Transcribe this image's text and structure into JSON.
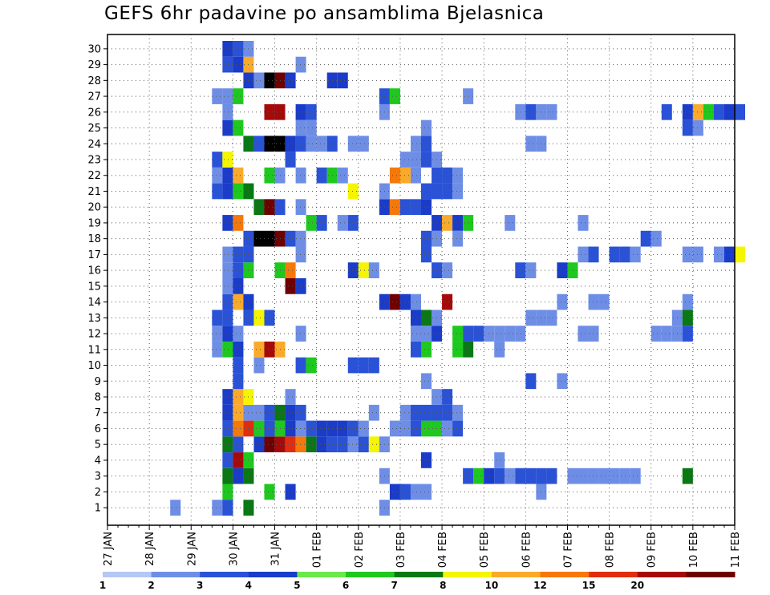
{
  "chart_data": {
    "type": "heatmap",
    "title": "GEFS 6hr padavine po ansamblima Bjelasnica",
    "xlabel": "",
    "ylabel": "",
    "x_tick_labels": [
      "27 JAN",
      "28 JAN",
      "29 JAN",
      "30 JAN",
      "31 JAN",
      "01 FEB",
      "02 FEB",
      "03 FEB",
      "04 FEB",
      "05 FEB",
      "06 FEB",
      "07 FEB",
      "08 FEB",
      "09 FEB",
      "10 FEB",
      "11 FEB"
    ],
    "y_tick_labels": [
      "1",
      "2",
      "3",
      "4",
      "5",
      "6",
      "7",
      "8",
      "9",
      "10",
      "11",
      "12",
      "13",
      "14",
      "15",
      "16",
      "17",
      "18",
      "19",
      "20",
      "21",
      "22",
      "23",
      "24",
      "25",
      "26",
      "27",
      "28",
      "29",
      "30"
    ],
    "x_range_days": [
      0,
      15
    ],
    "y_range_members": [
      0,
      30
    ],
    "time_step_hours": 6,
    "grid": true,
    "colorbar": {
      "placement": "bottom",
      "labels": [
        "1",
        "2",
        "3",
        "4",
        "5",
        "6",
        "7",
        "8",
        "10",
        "12",
        "15",
        "20"
      ],
      "colors": [
        "#b4c8f5",
        "#6e8ee6",
        "#2a52d6",
        "#1a3cc8",
        "#6ae84c",
        "#1ec81e",
        "#0a7814",
        "#f5f500",
        "#faaa2a",
        "#f5780a",
        "#e12d0f",
        "#a50a0a",
        "#6e0000"
      ]
    },
    "cells": [
      [
        2.75,
        0,
        2
      ],
      [
        2.5,
        0,
        1
      ],
      [
        2.75,
        0,
        2
      ],
      [
        3.25,
        0,
        6
      ],
      [
        1.5,
        0,
        1
      ],
      [
        6.5,
        0,
        1
      ],
      [
        2.75,
        1,
        5
      ],
      [
        3.75,
        1,
        5
      ],
      [
        4.25,
        1,
        3
      ],
      [
        6.75,
        1,
        3
      ],
      [
        7,
        1,
        2
      ],
      [
        7.25,
        1,
        1
      ],
      [
        7.5,
        1,
        1
      ],
      [
        10.25,
        1,
        1
      ],
      [
        2.75,
        2,
        6
      ],
      [
        3,
        2,
        3
      ],
      [
        3.25,
        2,
        6
      ],
      [
        6.5,
        2,
        1
      ],
      [
        8.5,
        2,
        2
      ],
      [
        8.75,
        2,
        5
      ],
      [
        9,
        2,
        3
      ],
      [
        9.25,
        2,
        2
      ],
      [
        9.5,
        2,
        1
      ],
      [
        9.75,
        2,
        2
      ],
      [
        10,
        2,
        2
      ],
      [
        10.25,
        2,
        2
      ],
      [
        10.5,
        2,
        2
      ],
      [
        11,
        2,
        1
      ],
      [
        11.25,
        2,
        1
      ],
      [
        11.5,
        2,
        1
      ],
      [
        11.75,
        2,
        1
      ],
      [
        12,
        2,
        1
      ],
      [
        12.25,
        2,
        1
      ],
      [
        12.5,
        2,
        1
      ],
      [
        13.75,
        2,
        6
      ],
      [
        2.75,
        3,
        2
      ],
      [
        3,
        3,
        11
      ],
      [
        3.25,
        3,
        5
      ],
      [
        9.25,
        3,
        1
      ],
      [
        7.5,
        3,
        3
      ],
      [
        2.75,
        4,
        6
      ],
      [
        3,
        4,
        2
      ],
      [
        3.5,
        4,
        3
      ],
      [
        3.75,
        4,
        12
      ],
      [
        4,
        4,
        11
      ],
      [
        4.25,
        4,
        10
      ],
      [
        4.5,
        4,
        9
      ],
      [
        4.75,
        4,
        6
      ],
      [
        5,
        4,
        3
      ],
      [
        5.25,
        4,
        2
      ],
      [
        5.5,
        4,
        2
      ],
      [
        5.75,
        4,
        1
      ],
      [
        6,
        4,
        2
      ],
      [
        6.25,
        4,
        7
      ],
      [
        6.5,
        4,
        1
      ],
      [
        2.75,
        5,
        2
      ],
      [
        3,
        5,
        9
      ],
      [
        3.25,
        5,
        10
      ],
      [
        3.5,
        5,
        5
      ],
      [
        3.75,
        5,
        2
      ],
      [
        4,
        5,
        5
      ],
      [
        4.25,
        5,
        3
      ],
      [
        4.5,
        5,
        1
      ],
      [
        4.75,
        5,
        2
      ],
      [
        5,
        5,
        3
      ],
      [
        5.25,
        5,
        3
      ],
      [
        5.5,
        5,
        3
      ],
      [
        5.75,
        5,
        2
      ],
      [
        6,
        5,
        1
      ],
      [
        6.75,
        5,
        1
      ],
      [
        7,
        5,
        1
      ],
      [
        7.25,
        5,
        2
      ],
      [
        7.5,
        5,
        5
      ],
      [
        7.75,
        5,
        5
      ],
      [
        8,
        5,
        1
      ],
      [
        8.25,
        5,
        2
      ],
      [
        2.75,
        6,
        3
      ],
      [
        3,
        6,
        8
      ],
      [
        3.25,
        6,
        1
      ],
      [
        3.5,
        6,
        1
      ],
      [
        3.75,
        6,
        2
      ],
      [
        4,
        6,
        6
      ],
      [
        4.25,
        6,
        3
      ],
      [
        4.5,
        6,
        2
      ],
      [
        6.25,
        6,
        1
      ],
      [
        7,
        6,
        1
      ],
      [
        7.25,
        6,
        2
      ],
      [
        7.5,
        6,
        2
      ],
      [
        7.75,
        6,
        2
      ],
      [
        8,
        6,
        2
      ],
      [
        8.25,
        6,
        1
      ],
      [
        2.75,
        7,
        3
      ],
      [
        3,
        7,
        8
      ],
      [
        3.25,
        7,
        7
      ],
      [
        4.25,
        7,
        1
      ],
      [
        7.75,
        7,
        1
      ],
      [
        8,
        7,
        2
      ],
      [
        3,
        8,
        2
      ],
      [
        7.5,
        8,
        1
      ],
      [
        10,
        8,
        2
      ],
      [
        10.75,
        8,
        1
      ],
      [
        3,
        9,
        2
      ],
      [
        3.5,
        9,
        1
      ],
      [
        4.5,
        9,
        2
      ],
      [
        4.75,
        9,
        5
      ],
      [
        5.75,
        9,
        2
      ],
      [
        6,
        9,
        2
      ],
      [
        6.25,
        9,
        2
      ],
      [
        2.5,
        10,
        1
      ],
      [
        2.75,
        10,
        5
      ],
      [
        3,
        10,
        3
      ],
      [
        3.5,
        10,
        8
      ],
      [
        3.75,
        10,
        11
      ],
      [
        4,
        10,
        8
      ],
      [
        7.25,
        10,
        2
      ],
      [
        7.5,
        10,
        5
      ],
      [
        8.25,
        10,
        5
      ],
      [
        8.5,
        10,
        6
      ],
      [
        9.25,
        10,
        1
      ],
      [
        2.5,
        11,
        1
      ],
      [
        2.75,
        11,
        3
      ],
      [
        3,
        11,
        1
      ],
      [
        4.5,
        11,
        1
      ],
      [
        7.25,
        11,
        1
      ],
      [
        7.5,
        11,
        1
      ],
      [
        7.75,
        11,
        3
      ],
      [
        8.25,
        11,
        5
      ],
      [
        8.5,
        11,
        2
      ],
      [
        8.75,
        11,
        2
      ],
      [
        9,
        11,
        1
      ],
      [
        9.25,
        11,
        1
      ],
      [
        9.5,
        11,
        1
      ],
      [
        9.75,
        11,
        1
      ],
      [
        11.25,
        11,
        1
      ],
      [
        11.5,
        11,
        1
      ],
      [
        13,
        11,
        1
      ],
      [
        13.25,
        11,
        1
      ],
      [
        13.5,
        11,
        1
      ],
      [
        13.75,
        11,
        2
      ],
      [
        2.5,
        12,
        2
      ],
      [
        2.75,
        12,
        2
      ],
      [
        3.25,
        12,
        2
      ],
      [
        3.5,
        12,
        7
      ],
      [
        3.75,
        12,
        2
      ],
      [
        7.25,
        12,
        3
      ],
      [
        7.5,
        12,
        6
      ],
      [
        7.75,
        12,
        1
      ],
      [
        10,
        12,
        1
      ],
      [
        10.25,
        12,
        1
      ],
      [
        10.5,
        12,
        1
      ],
      [
        13.5,
        12,
        1
      ],
      [
        13.75,
        12,
        6
      ],
      [
        2.75,
        13,
        2
      ],
      [
        3,
        13,
        8
      ],
      [
        3.25,
        13,
        3
      ],
      [
        6.5,
        13,
        3
      ],
      [
        6.75,
        13,
        12
      ],
      [
        7,
        13,
        3
      ],
      [
        7.25,
        13,
        1
      ],
      [
        8,
        13,
        11
      ],
      [
        10.75,
        13,
        1
      ],
      [
        11.5,
        13,
        1
      ],
      [
        11.75,
        13,
        1
      ],
      [
        13.75,
        13,
        1
      ],
      [
        2.75,
        14,
        1
      ],
      [
        3,
        14,
        3
      ],
      [
        4.25,
        14,
        12
      ],
      [
        4.5,
        14,
        3
      ],
      [
        2.75,
        15,
        1
      ],
      [
        3,
        15,
        2
      ],
      [
        3.25,
        15,
        5
      ],
      [
        4,
        15,
        5
      ],
      [
        4.25,
        15,
        9
      ],
      [
        5.75,
        15,
        3
      ],
      [
        6,
        15,
        7
      ],
      [
        6.25,
        15,
        1
      ],
      [
        7.75,
        15,
        2
      ],
      [
        8,
        15,
        1
      ],
      [
        9.75,
        15,
        2
      ],
      [
        10,
        15,
        1
      ],
      [
        10.75,
        15,
        3
      ],
      [
        11,
        15,
        5
      ],
      [
        2.75,
        16,
        1
      ],
      [
        3,
        16,
        2
      ],
      [
        3.25,
        16,
        2
      ],
      [
        4.5,
        16,
        1
      ],
      [
        7.5,
        16,
        2
      ],
      [
        11.25,
        16,
        1
      ],
      [
        11.5,
        16,
        2
      ],
      [
        12,
        16,
        2
      ],
      [
        12.25,
        16,
        2
      ],
      [
        12.5,
        16,
        1
      ],
      [
        13.75,
        16,
        1
      ],
      [
        14,
        16,
        1
      ],
      [
        14.5,
        16,
        1
      ],
      [
        14.75,
        16,
        3
      ],
      [
        15,
        16,
        7
      ],
      [
        3.25,
        17,
        2
      ],
      [
        3.5,
        17,
        13
      ],
      [
        3.75,
        17,
        13
      ],
      [
        4,
        17,
        12
      ],
      [
        4.25,
        17,
        2
      ],
      [
        4.5,
        17,
        1
      ],
      [
        7.5,
        17,
        2
      ],
      [
        7.75,
        17,
        1
      ],
      [
        8.25,
        17,
        1
      ],
      [
        12.75,
        17,
        2
      ],
      [
        13,
        17,
        1
      ],
      [
        2.75,
        18,
        3
      ],
      [
        3,
        18,
        9
      ],
      [
        4.75,
        18,
        5
      ],
      [
        5,
        18,
        2
      ],
      [
        5.5,
        18,
        1
      ],
      [
        5.75,
        18,
        2
      ],
      [
        7.75,
        18,
        3
      ],
      [
        8,
        18,
        8
      ],
      [
        8.25,
        18,
        3
      ],
      [
        8.5,
        18,
        5
      ],
      [
        9.5,
        18,
        1
      ],
      [
        11.25,
        18,
        1
      ],
      [
        3.5,
        19,
        6
      ],
      [
        3.75,
        19,
        12
      ],
      [
        4,
        19,
        2
      ],
      [
        4.5,
        19,
        1
      ],
      [
        6.5,
        19,
        3
      ],
      [
        6.75,
        19,
        9
      ],
      [
        7,
        19,
        2
      ],
      [
        7.25,
        19,
        2
      ],
      [
        7.5,
        19,
        3
      ],
      [
        2.5,
        20,
        2
      ],
      [
        2.75,
        20,
        3
      ],
      [
        3,
        20,
        5
      ],
      [
        3.25,
        20,
        6
      ],
      [
        5.75,
        20,
        7
      ],
      [
        6.5,
        20,
        1
      ],
      [
        7.5,
        20,
        2
      ],
      [
        7.75,
        20,
        2
      ],
      [
        8,
        20,
        2
      ],
      [
        8.25,
        20,
        1
      ],
      [
        2.5,
        21,
        1
      ],
      [
        2.75,
        21,
        3
      ],
      [
        3,
        21,
        8
      ],
      [
        3.75,
        21,
        5
      ],
      [
        4,
        21,
        1
      ],
      [
        4.5,
        21,
        1
      ],
      [
        5,
        21,
        2
      ],
      [
        5.25,
        21,
        5
      ],
      [
        5.5,
        21,
        1
      ],
      [
        6.75,
        21,
        9
      ],
      [
        7,
        21,
        8
      ],
      [
        7.25,
        21,
        1
      ],
      [
        7.75,
        21,
        2
      ],
      [
        8,
        21,
        2
      ],
      [
        8.25,
        21,
        1
      ],
      [
        2.5,
        22,
        2
      ],
      [
        2.75,
        22,
        7
      ],
      [
        4.25,
        22,
        2
      ],
      [
        7,
        22,
        1
      ],
      [
        7.25,
        22,
        1
      ],
      [
        7.5,
        22,
        2
      ],
      [
        7.75,
        22,
        1
      ],
      [
        3.25,
        23,
        6
      ],
      [
        3.5,
        23,
        2
      ],
      [
        3.75,
        23,
        13
      ],
      [
        4,
        23,
        13
      ],
      [
        4.25,
        23,
        3
      ],
      [
        4.5,
        23,
        2
      ],
      [
        4.75,
        23,
        1
      ],
      [
        5,
        23,
        1
      ],
      [
        5.25,
        23,
        2
      ],
      [
        5.75,
        23,
        1
      ],
      [
        6,
        23,
        1
      ],
      [
        7.25,
        23,
        1
      ],
      [
        7.5,
        23,
        2
      ],
      [
        10,
        23,
        1
      ],
      [
        10.25,
        23,
        1
      ],
      [
        2.75,
        24,
        3
      ],
      [
        3,
        24,
        5
      ],
      [
        4.5,
        24,
        1
      ],
      [
        4.75,
        24,
        1
      ],
      [
        7.5,
        24,
        1
      ],
      [
        13.75,
        24,
        2
      ],
      [
        14,
        24,
        1
      ],
      [
        2.75,
        25,
        1
      ],
      [
        3.75,
        25,
        11
      ],
      [
        4,
        25,
        11
      ],
      [
        4.5,
        25,
        3
      ],
      [
        4.75,
        25,
        2
      ],
      [
        6.5,
        25,
        1
      ],
      [
        9.75,
        25,
        1
      ],
      [
        10,
        25,
        2
      ],
      [
        10.25,
        25,
        1
      ],
      [
        10.5,
        25,
        1
      ],
      [
        13.25,
        25,
        2
      ],
      [
        13.75,
        25,
        3
      ],
      [
        14,
        25,
        8
      ],
      [
        14.25,
        25,
        5
      ],
      [
        14.5,
        25,
        2
      ],
      [
        14.75,
        25,
        3
      ],
      [
        15,
        25,
        2
      ],
      [
        2.5,
        26,
        1
      ],
      [
        2.75,
        26,
        1
      ],
      [
        3,
        26,
        5
      ],
      [
        6.5,
        26,
        2
      ],
      [
        6.75,
        26,
        5
      ],
      [
        8.5,
        26,
        1
      ],
      [
        3.25,
        27,
        3
      ],
      [
        3.5,
        27,
        1
      ],
      [
        3.75,
        27,
        13
      ],
      [
        4,
        27,
        12
      ],
      [
        4.25,
        27,
        3
      ],
      [
        5.25,
        27,
        3
      ],
      [
        5.5,
        27,
        3
      ],
      [
        2.75,
        28,
        2
      ],
      [
        3,
        28,
        3
      ],
      [
        3.25,
        28,
        8
      ],
      [
        4.5,
        28,
        1
      ],
      [
        2.75,
        29,
        3
      ],
      [
        3,
        29,
        2
      ],
      [
        3.25,
        29,
        1
      ]
    ]
  }
}
